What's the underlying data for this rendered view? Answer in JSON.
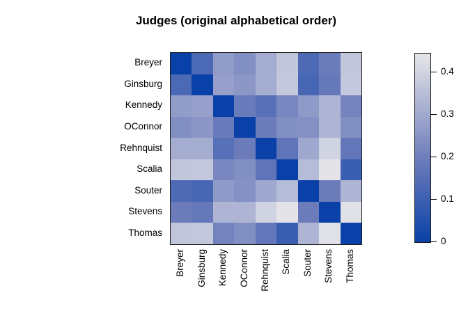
{
  "chart_data": {
    "type": "heatmap",
    "title": "Judges (original alphabetical order)",
    "xlabel": "",
    "ylabel": "",
    "labels": [
      "Breyer",
      "Ginsburg",
      "Kennedy",
      "OConnor",
      "Rehnquist",
      "Scalia",
      "Souter",
      "Stevens",
      "Thomas"
    ],
    "matrix": [
      [
        0,
        0.13,
        0.27,
        0.24,
        0.31,
        0.37,
        0.135,
        0.195,
        0.37
      ],
      [
        0.13,
        0,
        0.28,
        0.26,
        0.31,
        0.375,
        0.12,
        0.18,
        0.375
      ],
      [
        0.27,
        0.28,
        0,
        0.19,
        0.155,
        0.22,
        0.265,
        0.33,
        0.21
      ],
      [
        0.24,
        0.26,
        0.19,
        0,
        0.195,
        0.24,
        0.245,
        0.33,
        0.24
      ],
      [
        0.31,
        0.31,
        0.155,
        0.195,
        0,
        0.17,
        0.3,
        0.4,
        0.175
      ],
      [
        0.37,
        0.375,
        0.22,
        0.24,
        0.17,
        0,
        0.345,
        0.44,
        0.095
      ],
      [
        0.135,
        0.12,
        0.265,
        0.245,
        0.3,
        0.345,
        0,
        0.195,
        0.33
      ],
      [
        0.195,
        0.18,
        0.33,
        0.33,
        0.4,
        0.44,
        0.195,
        0,
        0.435
      ],
      [
        0.37,
        0.375,
        0.21,
        0.24,
        0.175,
        0.095,
        0.33,
        0.435,
        0
      ]
    ],
    "color_scale": {
      "min_color": "#0A41A8",
      "mid_color": "#6F7EBC",
      "max_color": "#E6E6E9",
      "mid_pos": 0.45,
      "vmin": 0,
      "vmax": 0.445
    },
    "colorbar": {
      "position": "right",
      "ticks": [
        {
          "value": 0,
          "label": "0"
        },
        {
          "value": 0.1,
          "label": "0.1"
        },
        {
          "value": 0.2,
          "label": "0.2"
        },
        {
          "value": 0.3,
          "label": "0.3"
        },
        {
          "value": 0.4,
          "label": "0.4"
        }
      ]
    },
    "grid": false,
    "legend_position": "right"
  }
}
